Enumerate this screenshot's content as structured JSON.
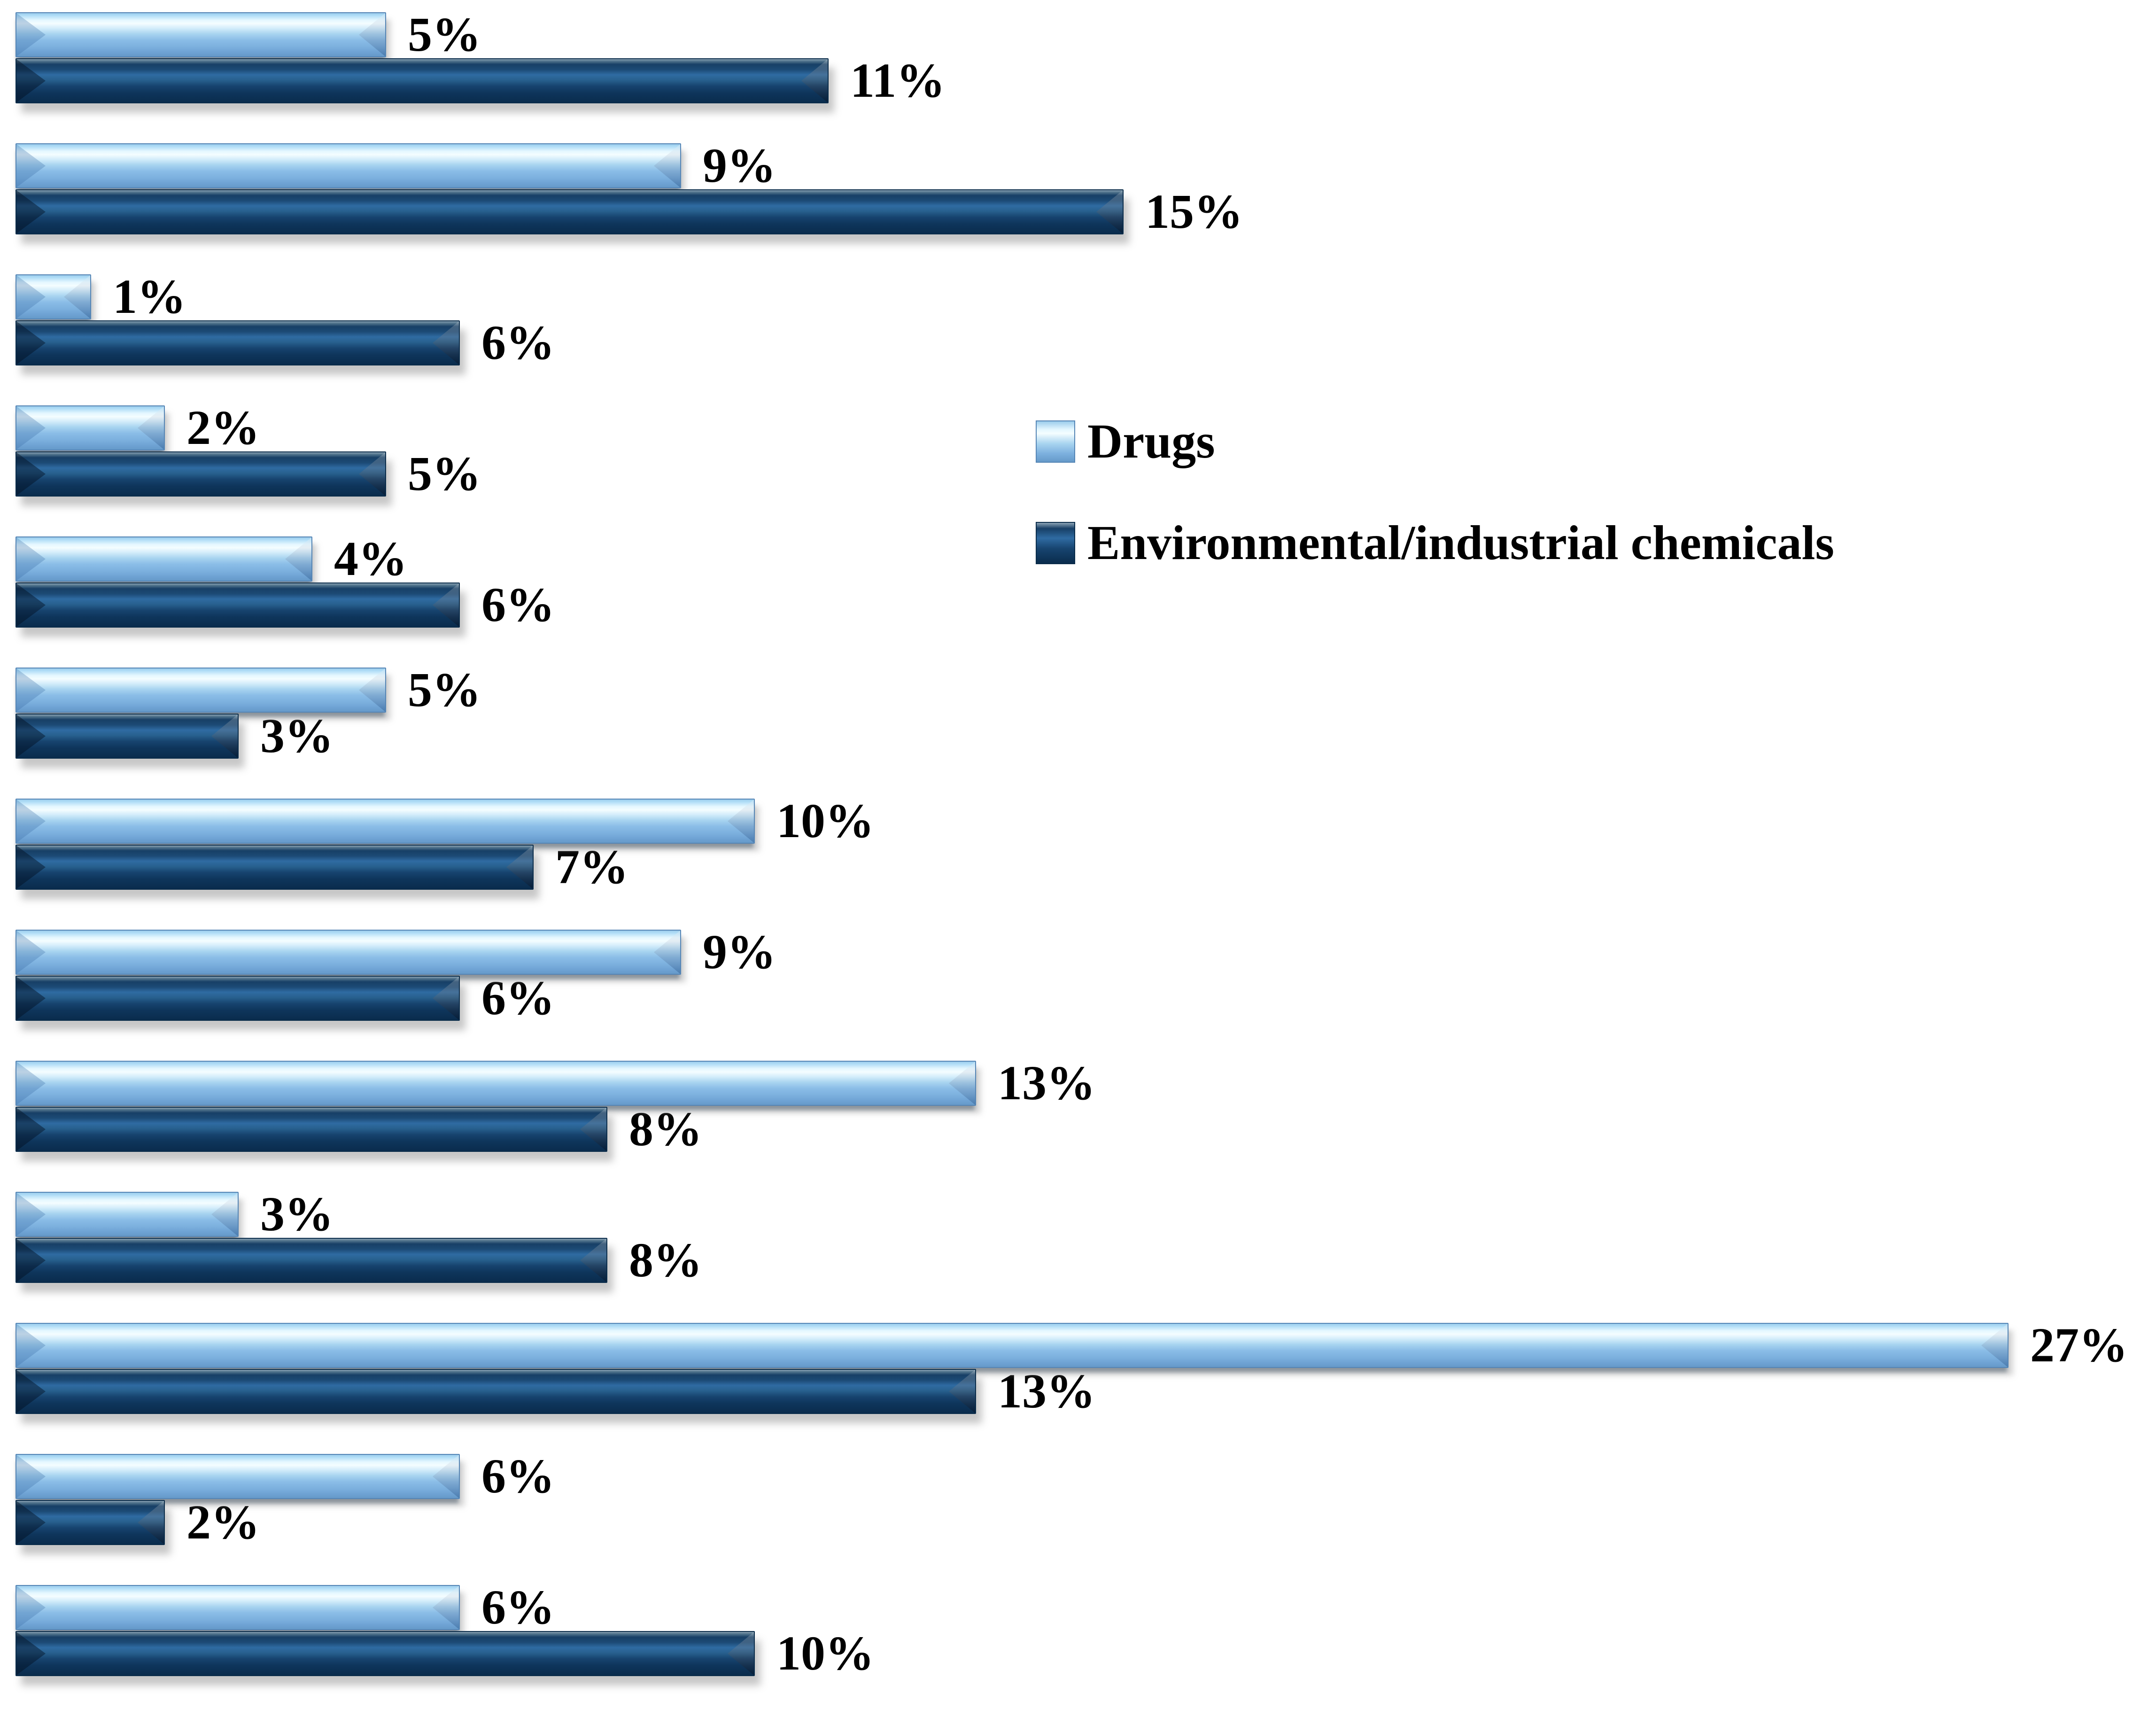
{
  "page": {
    "background": "#ffffff"
  },
  "colors": {
    "drugs_bar": "#9CC9EC",
    "environmental_bar": "#123E63",
    "label_text": "#000000"
  },
  "legend": {
    "items": [
      {
        "label": "Drugs",
        "swatch": "light-blue"
      },
      {
        "label": "Environmental/industrial chemicals",
        "swatch": "dark-navy"
      }
    ]
  },
  "chart_data": {
    "type": "bar",
    "orientation": "horizontal",
    "title": "",
    "xlabel": "",
    "ylabel": "",
    "axis_visible": false,
    "grid": false,
    "legend_position": "center-right",
    "xlim": [
      0,
      29
    ],
    "value_unit": "%",
    "categories": [
      "",
      "",
      "",
      "",
      "",
      "",
      "",
      "",
      "",
      "",
      "",
      "",
      ""
    ],
    "series": [
      {
        "name": "Drugs",
        "color": "#9CC9EC",
        "values": [
          5,
          9,
          1,
          2,
          4,
          5,
          10,
          9,
          13,
          3,
          27,
          6,
          6
        ]
      },
      {
        "name": "Environmental/industrial chemicals",
        "color": "#123E63",
        "values": [
          11,
          15,
          6,
          5,
          6,
          3,
          7,
          6,
          8,
          8,
          13,
          2,
          10
        ]
      }
    ],
    "data_labels": {
      "drugs": [
        "5%",
        "9%",
        "1%",
        "2%",
        "4%",
        "5%",
        "10%",
        "9%",
        "13%",
        "3%",
        "27%",
        "6%",
        "6%"
      ],
      "env": [
        "11%",
        "15%",
        "6%",
        "5%",
        "6%",
        "3%",
        "7%",
        "6%",
        "8%",
        "8%",
        "13%",
        "2%",
        "10%"
      ]
    }
  }
}
